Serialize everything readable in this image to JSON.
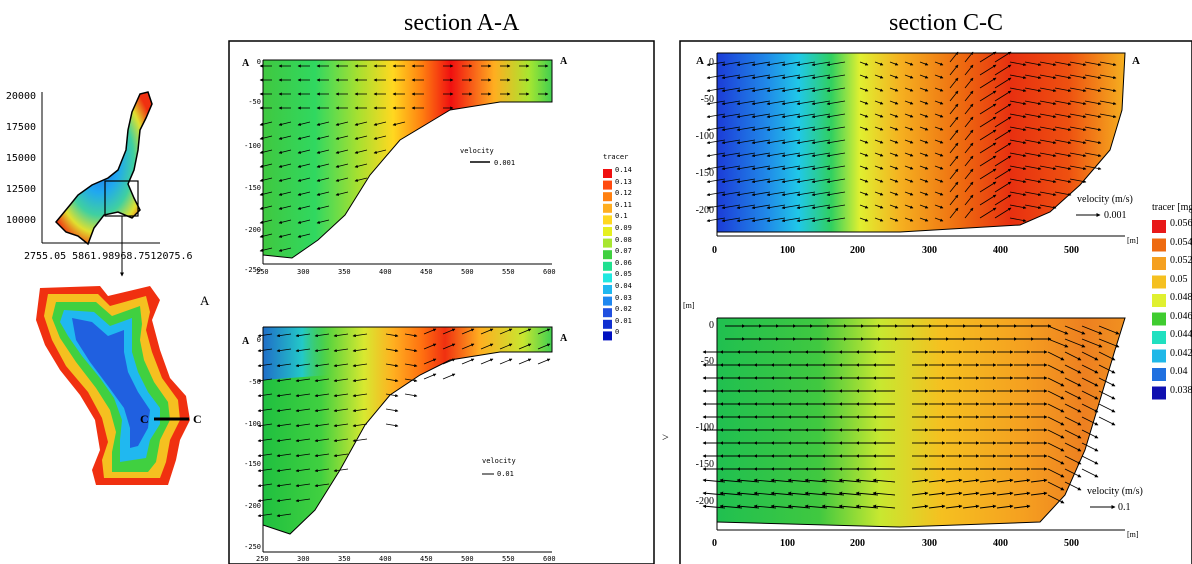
{
  "titles": {
    "left": "section A-A",
    "right": "section C-C"
  },
  "overview": {
    "y_ticks": [
      "20000",
      "17500",
      "15000",
      "12500",
      "10000"
    ],
    "x_ticks": "2755.05 5861.98968.7512075.6",
    "section_label": "A",
    "cc_label_left": "C",
    "cc_label_right": "C"
  },
  "left_panels": {
    "end_labels": [
      "A",
      "A"
    ],
    "y_ticks": [
      "0",
      "-50",
      "-100",
      "-150",
      "-200",
      "-250"
    ],
    "x_ticks": [
      "250",
      "300",
      "350",
      "400",
      "450",
      "500",
      "550",
      "600"
    ],
    "top": {
      "velocity_label": "velocity",
      "velocity_value": "0.001"
    },
    "bottom": {
      "velocity_label": "velocity",
      "velocity_value": "0.01"
    }
  },
  "left_legend": {
    "title": "tracer",
    "entries": [
      {
        "label": "0.14",
        "color": "#f01010"
      },
      {
        "label": "0.13",
        "color": "#ff4a10"
      },
      {
        "label": "0.12",
        "color": "#ff8010"
      },
      {
        "label": "0.11",
        "color": "#ffae20"
      },
      {
        "label": "0.1",
        "color": "#ffd820"
      },
      {
        "label": "0.09",
        "color": "#e6f020"
      },
      {
        "label": "0.08",
        "color": "#a8e630"
      },
      {
        "label": "0.07",
        "color": "#40d040"
      },
      {
        "label": "0.06",
        "color": "#20e090"
      },
      {
        "label": "0.05",
        "color": "#20e8e0"
      },
      {
        "label": "0.04",
        "color": "#20b8f0"
      },
      {
        "label": "0.03",
        "color": "#2088f0"
      },
      {
        "label": "0.02",
        "color": "#2050e0"
      },
      {
        "label": "0.01",
        "color": "#1030d0"
      },
      {
        "label": "0",
        "color": "#0010c0"
      }
    ]
  },
  "right_panels": {
    "top": {
      "end_labels": [
        "A",
        "A"
      ],
      "y_ticks": [
        "0",
        "-50",
        "-100",
        "-150",
        "-200"
      ],
      "x_ticks": [
        "0",
        "100",
        "200",
        "300",
        "400",
        "500"
      ],
      "unit": "[m]",
      "velocity_label": "velocity (m/s)",
      "velocity_value": "0.001"
    },
    "bottom": {
      "y_unit": "[m]",
      "y_ticks": [
        "0",
        "-50",
        "-100",
        "-150",
        "-200"
      ],
      "x_ticks": [
        "0",
        "100",
        "200",
        "300",
        "400",
        "500"
      ],
      "unit": "[m]",
      "velocity_label": "velocity (m/s)",
      "velocity_value": "0.1"
    }
  },
  "right_legend": {
    "title": "tracer [mg",
    "entries": [
      {
        "label": "0.056",
        "color": "#e81818"
      },
      {
        "label": "0.054",
        "color": "#ee6a10"
      },
      {
        "label": "0.052",
        "color": "#f5a020"
      },
      {
        "label": "0.05",
        "color": "#f5c020"
      },
      {
        "label": "0.048",
        "color": "#e0f030"
      },
      {
        "label": "0.046",
        "color": "#40cc30"
      },
      {
        "label": "0.044",
        "color": "#20e0c0"
      },
      {
        "label": "0.042",
        "color": "#20b8e8"
      },
      {
        "label": "0.04",
        "color": "#2070e0"
      },
      {
        "label": "0.038",
        "color": "#1010b0"
      }
    ]
  },
  "misc": {
    "arrow_glyph": ">"
  }
}
